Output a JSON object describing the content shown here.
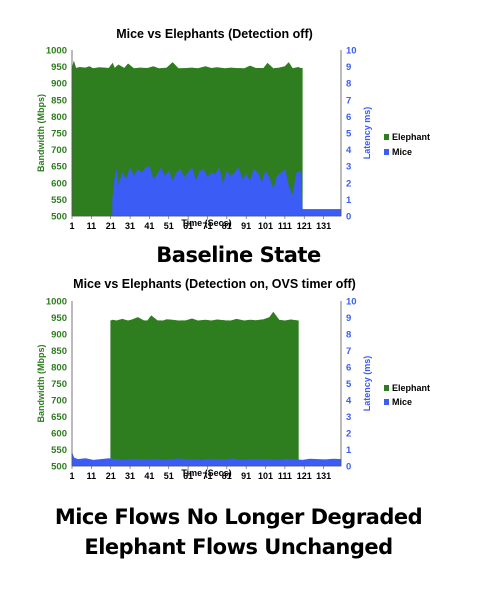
{
  "chart_data": [
    {
      "type": "area",
      "title": "Mice vs Elephants (Detection off)",
      "xlabel": "Time (Secs)",
      "ylabel": "Bandwidth (Mbps)",
      "y2label": "Latency ms)",
      "xlim": [
        1,
        140
      ],
      "ylim": [
        500,
        1000
      ],
      "y2lim": [
        0,
        10
      ],
      "x_ticks": [
        "1",
        "11",
        "21",
        "31",
        "41",
        "51",
        "61",
        "71",
        "81",
        "91",
        "101",
        "111",
        "121",
        "131"
      ],
      "y_ticks": [
        "500",
        "550",
        "600",
        "650",
        "700",
        "750",
        "800",
        "850",
        "900",
        "950",
        "1000"
      ],
      "y2_ticks": [
        "0",
        "1",
        "2",
        "3",
        "4",
        "5",
        "6",
        "7",
        "8",
        "9",
        "10"
      ],
      "legend": "right",
      "grid": false,
      "series": [
        {
          "name": "Elephant",
          "color": "#2e7d1f",
          "axis": "left",
          "x": [
            1,
            2,
            3,
            5,
            8,
            10,
            12,
            15,
            18,
            20,
            22,
            23,
            25,
            28,
            30,
            33,
            36,
            40,
            43,
            46,
            50,
            53,
            56,
            60,
            63,
            66,
            70,
            73,
            76,
            80,
            83,
            86,
            90,
            93,
            96,
            100,
            102,
            105,
            108,
            111,
            113,
            115,
            118,
            119,
            120
          ],
          "values": [
            945,
            965,
            945,
            948,
            946,
            950,
            944,
            947,
            946,
            945,
            960,
            945,
            955,
            945,
            958,
            944,
            946,
            945,
            950,
            944,
            946,
            962,
            944,
            945,
            946,
            944,
            950,
            945,
            947,
            944,
            946,
            945,
            944,
            952,
            945,
            945,
            960,
            944,
            946,
            950,
            962,
            944,
            948,
            945,
            945
          ]
        },
        {
          "name": "Mice",
          "color": "#3b5cf5",
          "axis": "right",
          "x": [
            22,
            23,
            24,
            25,
            27,
            29,
            31,
            33,
            35,
            37,
            39,
            41,
            43,
            45,
            47,
            49,
            51,
            53,
            55,
            57,
            59,
            61,
            63,
            65,
            67,
            69,
            71,
            73,
            75,
            77,
            79,
            81,
            83,
            85,
            87,
            89,
            91,
            93,
            95,
            97,
            99,
            101,
            103,
            105,
            107,
            109,
            111,
            113,
            115,
            117,
            119,
            120,
            122,
            126,
            131,
            136,
            140
          ],
          "values": [
            1.0,
            2.2,
            2.8,
            1.8,
            2.6,
            2.2,
            2.9,
            2.4,
            2.8,
            2.6,
            2.9,
            3.0,
            2.2,
            2.5,
            2.9,
            2.4,
            2.7,
            2.1,
            2.6,
            2.8,
            2.3,
            2.6,
            2.9,
            2.1,
            2.7,
            2.8,
            2.3,
            2.6,
            2.5,
            2.9,
            1.9,
            2.7,
            2.4,
            2.6,
            2.9,
            2.2,
            2.5,
            2.1,
            2.8,
            2.6,
            2.0,
            2.7,
            2.3,
            1.6,
            2.4,
            2.6,
            2.8,
            1.8,
            1.2,
            2.6,
            2.7,
            0.4,
            0.4,
            0.4,
            0.4,
            0.4,
            0.4
          ]
        }
      ]
    },
    {
      "type": "area",
      "title": "Mice vs Elephants (Detection on, OVS timer off)",
      "xlabel": "Time (Secs)",
      "ylabel": "Bandwidth (Mbps)",
      "y2label": "Latency (ms)",
      "xlim": [
        1,
        140
      ],
      "ylim": [
        500,
        1000
      ],
      "y2lim": [
        0,
        10
      ],
      "x_ticks": [
        "1",
        "11",
        "21",
        "31",
        "41",
        "51",
        "61",
        "71",
        "81",
        "91",
        "101",
        "111",
        "121",
        "131"
      ],
      "y_ticks": [
        "500",
        "550",
        "600",
        "650",
        "700",
        "750",
        "800",
        "850",
        "900",
        "950",
        "1000"
      ],
      "y2_ticks": [
        "0",
        "1",
        "2",
        "3",
        "4",
        "5",
        "6",
        "7",
        "8",
        "9",
        "10"
      ],
      "legend": "right",
      "grid": false,
      "series": [
        {
          "name": "Elephant",
          "color": "#2e7d1f",
          "axis": "left",
          "x": [
            21,
            22,
            24,
            27,
            30,
            32,
            35,
            38,
            40,
            42,
            45,
            48,
            50,
            53,
            56,
            60,
            63,
            66,
            70,
            73,
            76,
            80,
            83,
            86,
            90,
            93,
            96,
            100,
            103,
            105,
            108,
            111,
            114,
            117,
            118
          ],
          "values": [
            940,
            942,
            940,
            945,
            940,
            943,
            950,
            941,
            940,
            955,
            941,
            940,
            944,
            942,
            940,
            941,
            946,
            940,
            942,
            940,
            943,
            941,
            940,
            945,
            940,
            942,
            941,
            944,
            950,
            966,
            942,
            940,
            943,
            941,
            940
          ]
        },
        {
          "name": "Mice",
          "color": "#3b5cf5",
          "axis": "right",
          "x": [
            1,
            2,
            4,
            8,
            12,
            16,
            20,
            24,
            28,
            32,
            36,
            40,
            44,
            48,
            52,
            56,
            60,
            64,
            68,
            72,
            76,
            80,
            84,
            88,
            92,
            96,
            100,
            104,
            108,
            112,
            116,
            120,
            124,
            128,
            132,
            136,
            140
          ],
          "values": [
            0.8,
            0.5,
            0.4,
            0.45,
            0.35,
            0.4,
            0.45,
            0.4,
            0.35,
            0.42,
            0.4,
            0.38,
            0.42,
            0.36,
            0.4,
            0.44,
            0.38,
            0.4,
            0.36,
            0.42,
            0.4,
            0.38,
            0.44,
            0.36,
            0.4,
            0.42,
            0.38,
            0.4,
            0.36,
            0.42,
            0.4,
            0.35,
            0.42,
            0.4,
            0.38,
            0.42,
            0.4
          ]
        }
      ]
    }
  ],
  "captions": {
    "chart1": "Baseline State",
    "chart2_line1": "Mice Flows No Longer Degraded",
    "chart2_line2": "Elephant Flows Unchanged"
  }
}
